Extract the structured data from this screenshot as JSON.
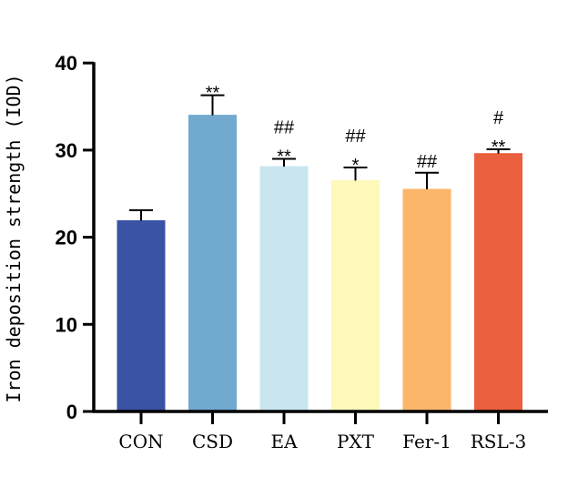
{
  "chart_data": {
    "type": "bar",
    "title": "",
    "xlabel": "",
    "ylabel": "Iron deposition strength (IOD)",
    "ylim": [
      0,
      40
    ],
    "yticks": [
      0,
      10,
      20,
      30,
      40
    ],
    "grid": false,
    "categories": [
      "CON",
      "CSD",
      "EA",
      "PXT",
      "Fer-1",
      "RSL-3"
    ],
    "values": [
      21.9,
      34.0,
      28.1,
      26.5,
      25.5,
      29.6
    ],
    "error_upper": [
      23.1,
      36.3,
      29.0,
      28.0,
      27.4,
      30.1
    ],
    "colors": [
      "#3A53A4",
      "#71A9CF",
      "#C9E6F0",
      "#FEF9BA",
      "#FBB66A",
      "#EA5F3D"
    ],
    "annotations_star": [
      "",
      "**",
      "**",
      "*",
      "",
      "**"
    ],
    "annotations_hash": [
      "",
      "",
      "##",
      "##",
      "##",
      "#"
    ]
  }
}
